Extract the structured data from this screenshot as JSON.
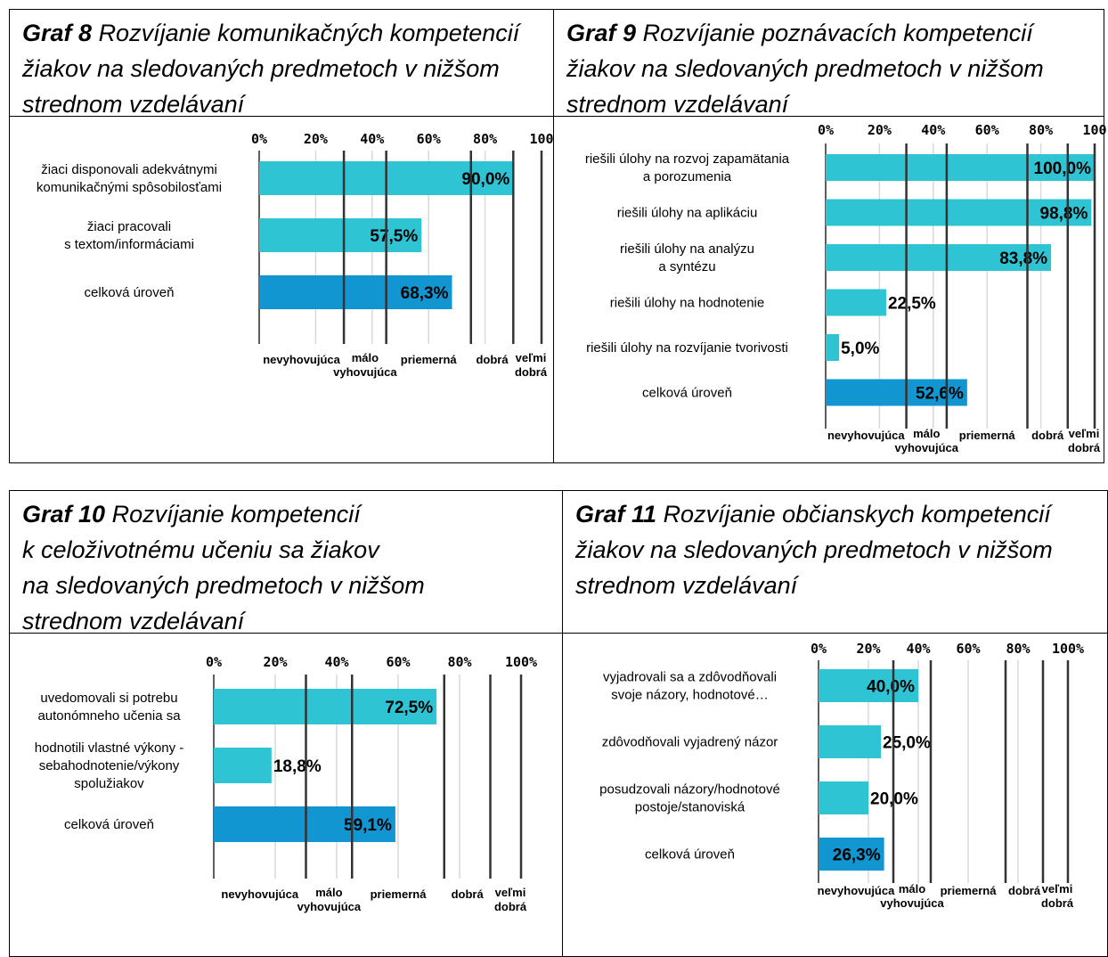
{
  "chart_data": [
    {
      "type": "bar",
      "title_bold": "Graf 8",
      "title": "Rozvíjanie komunikačných kompetencií žiakov na sledovaných predmetoch v nižšom strednom vzdelávaní",
      "title_lines": [
        "Rozvíjanie komunikačných kompetencií",
        "žiakov na sledovaných predmetoch v nižšom",
        "strednom vzdelávaní"
      ],
      "x_ticks": [
        "0%",
        "20%",
        "40%",
        "60%",
        "80%",
        "100"
      ],
      "xlim": [
        0,
        100
      ],
      "categories": [
        [
          "žiaci disponovali adekvátnymi",
          "komunikačnými spôsobilosťami"
        ],
        [
          "žiaci pracovali",
          "s textom/informáciami"
        ],
        [
          "celková úroveň"
        ]
      ],
      "values": [
        90.0,
        57.5,
        68.3
      ],
      "value_labels": [
        "90,0%",
        "57,5%",
        "68,3%"
      ],
      "bar_colors": [
        "#2ec4d4",
        "#2ec4d4",
        "#1296d1"
      ],
      "bands": [
        {
          "value": 30,
          "label": [
            "nevyhovujúca"
          ]
        },
        {
          "value": 45,
          "label": [
            "málo",
            "vyhovujúca"
          ]
        },
        {
          "value": 75,
          "label": [
            "priemerná"
          ]
        },
        {
          "value": 90,
          "label": [
            "dobrá"
          ]
        },
        {
          "value": 100,
          "label": [
            "veľmi",
            "dobrá"
          ]
        }
      ]
    },
    {
      "type": "bar",
      "title_bold": "Graf 9",
      "title": "Rozvíjanie poznávacích kompetencií žiakov na sledovaných predmetoch v nižšom strednom vzdelávaní",
      "title_lines": [
        "Rozvíjanie poznávacích kompetencií",
        "žiakov na sledovaných predmetoch v nižšom",
        "strednom vzdelávaní"
      ],
      "x_ticks": [
        "0%",
        "20%",
        "40%",
        "60%",
        "80%",
        "100"
      ],
      "xlim": [
        0,
        100
      ],
      "categories": [
        [
          "riešili úlohy na rozvoj zapamätania",
          "a porozumenia"
        ],
        [
          "riešili úlohy na aplikáciu"
        ],
        [
          "riešili úlohy na analýzu",
          "a syntézu"
        ],
        [
          "riešili úlohy na hodnotenie"
        ],
        [
          "riešili úlohy na rozvíjanie tvorivosti"
        ],
        [
          "celková úroveň"
        ]
      ],
      "values": [
        100.0,
        98.8,
        83.8,
        22.5,
        5.0,
        52.6
      ],
      "value_labels": [
        "100,0%",
        "98,8%",
        "83,8%",
        "22,5%",
        "5,0%",
        "52,6%"
      ],
      "bar_colors": [
        "#2ec4d4",
        "#2ec4d4",
        "#2ec4d4",
        "#2ec4d4",
        "#2ec4d4",
        "#1296d1"
      ],
      "bands": [
        {
          "value": 30,
          "label": [
            "nevyhovujúca"
          ]
        },
        {
          "value": 45,
          "label": [
            "málo",
            "vyhovujúca"
          ]
        },
        {
          "value": 75,
          "label": [
            "priemerná"
          ]
        },
        {
          "value": 90,
          "label": [
            "dobrá"
          ]
        },
        {
          "value": 100,
          "label": [
            "veľmi",
            "dobrá"
          ]
        }
      ]
    },
    {
      "type": "bar",
      "title_bold": "Graf 10",
      "title": "Rozvíjanie kompetencií k celoživotnému učeniu sa žiakov na sledovaných predmetoch v nižšom strednom vzdelávaní",
      "title_lines": [
        "Rozvíjanie kompetencií",
        "k celoživotnému učeniu sa žiakov",
        "na sledovaných predmetoch v nižšom",
        "strednom  vzdelávaní"
      ],
      "x_ticks": [
        "0%",
        "20%",
        "40%",
        "60%",
        "80%",
        "100%"
      ],
      "xlim": [
        0,
        100
      ],
      "categories": [
        [
          "uvedomovali  si potrebu",
          "autonómneho učenia sa"
        ],
        [
          "hodnotili vlastné výkony -",
          "sebahodnotenie/výkony",
          "spolužiakov"
        ],
        [
          "celková úroveň"
        ]
      ],
      "values": [
        72.5,
        18.8,
        59.1
      ],
      "value_labels": [
        "72,5%",
        "18,8%",
        "59,1%"
      ],
      "bar_colors": [
        "#2ec4d4",
        "#2ec4d4",
        "#1296d1"
      ],
      "bands": [
        {
          "value": 30,
          "label": [
            "nevyhovujúca"
          ]
        },
        {
          "value": 45,
          "label": [
            "málo",
            "vyhovujúca"
          ]
        },
        {
          "value": 75,
          "label": [
            "priemerná"
          ]
        },
        {
          "value": 90,
          "label": [
            "dobrá"
          ]
        },
        {
          "value": 100,
          "label": [
            "veľmi",
            "dobrá"
          ]
        }
      ]
    },
    {
      "type": "bar",
      "title_bold": "Graf 11",
      "title": "Rozvíjanie občianskych kompetencií žiakov na sledovaných predmetoch v nižšom strednom vzdelávaní",
      "title_lines": [
        "Rozvíjanie občianskych kompetencií",
        "žiakov na sledovaných predmetoch v nižšom",
        "strednom vzdelávaní"
      ],
      "x_ticks": [
        "0%",
        "20%",
        "40%",
        "60%",
        "80%",
        "100%"
      ],
      "xlim": [
        0,
        100
      ],
      "categories": [
        [
          "vyjadrovali sa a zdôvodňovali",
          "svoje názory, hodnotové…"
        ],
        [
          "zdôvodňovali vyjadrený názor"
        ],
        [
          "posudzovali názory/hodnotové",
          "postoje/stanoviská"
        ],
        [
          "celková úroveň"
        ]
      ],
      "values": [
        40.0,
        25.0,
        20.0,
        26.3
      ],
      "value_labels": [
        "40,0%",
        "25,0%",
        "20,0%",
        "26,3%"
      ],
      "bar_colors": [
        "#2ec4d4",
        "#2ec4d4",
        "#2ec4d4",
        "#1296d1"
      ],
      "bands": [
        {
          "value": 30,
          "label": [
            "nevyhovujúca"
          ]
        },
        {
          "value": 45,
          "label": [
            "málo",
            "vyhovujúca"
          ]
        },
        {
          "value": 75,
          "label": [
            "priemerná"
          ]
        },
        {
          "value": 90,
          "label": [
            "dobrá"
          ]
        },
        {
          "value": 100,
          "label": [
            "veľmi",
            "dobrá"
          ]
        }
      ]
    }
  ]
}
